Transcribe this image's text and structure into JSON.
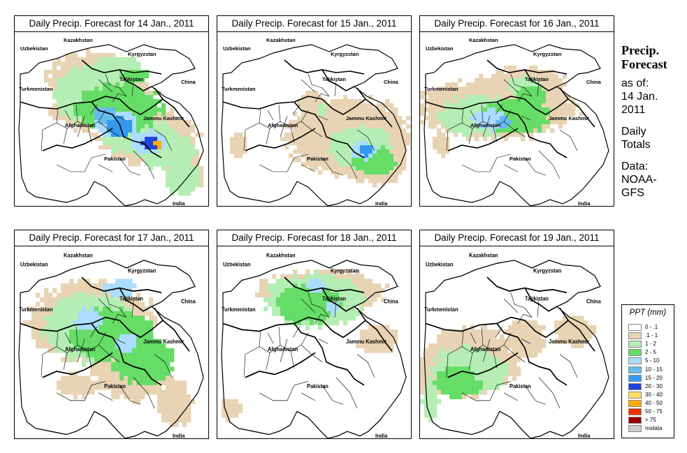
{
  "panels": [
    {
      "title": "Daily Precip. Forecast for  14 Jan., 2011",
      "pattern": "d14"
    },
    {
      "title": "Daily Precip. Forecast for  15 Jan., 2011",
      "pattern": "d15"
    },
    {
      "title": "Daily Precip. Forecast for  16 Jan., 2011",
      "pattern": "d16"
    },
    {
      "title": "Daily Precip. Forecast for  17 Jan., 2011",
      "pattern": "d17"
    },
    {
      "title": "Daily Precip. Forecast for  18 Jan., 2011",
      "pattern": "d18"
    },
    {
      "title": "Daily Precip. Forecast for  19 Jan., 2011",
      "pattern": "d19"
    }
  ],
  "map_labels": {
    "kazakhstan": "Kazakhstan",
    "uzbekistan": "Uzbekistan",
    "kyrgyzstan": "Kyrgyzstan",
    "tajikistan": "Tajikistan",
    "turkmenistan": "Turkmenistan",
    "china": "China",
    "afghanistan": "Afghanistan",
    "jammu_kashmir": "Jammu Kashmir",
    "pakistan": "Pakistan",
    "india": "India"
  },
  "sidebar": {
    "title_line1": "Precip.",
    "title_line2": "Forecast",
    "asof_line1": "as of:",
    "asof_line2": "14 Jan.",
    "asof_line3": "2011",
    "daily_line1": "Daily",
    "daily_line2": "Totals",
    "data_line1": "Data:",
    "data_line2": "NOAA-",
    "data_line3": "GFS"
  },
  "legend": {
    "title": "PPT (mm)",
    "items": [
      {
        "label": "0 - .1",
        "color": "#ffffff"
      },
      {
        "label": ".1 - 1",
        "color": "#e8d4b4"
      },
      {
        "label": "1 - 2",
        "color": "#b4eeb4"
      },
      {
        "label": "2 - 5",
        "color": "#66dd66"
      },
      {
        "label": "5 - 10",
        "color": "#aaddff"
      },
      {
        "label": "10 - 15",
        "color": "#66bbee"
      },
      {
        "label": "15 - 20",
        "color": "#3399ee"
      },
      {
        "label": "20 - 30",
        "color": "#2244dd"
      },
      {
        "label": "30 - 40",
        "color": "#ffdd66"
      },
      {
        "label": "40 - 50",
        "color": "#ffaa00"
      },
      {
        "label": "50 - 75",
        "color": "#ee3300"
      },
      {
        "label": "> 75",
        "color": "#990000"
      },
      {
        "label": "nodata",
        "color": "#cccccc"
      }
    ]
  }
}
